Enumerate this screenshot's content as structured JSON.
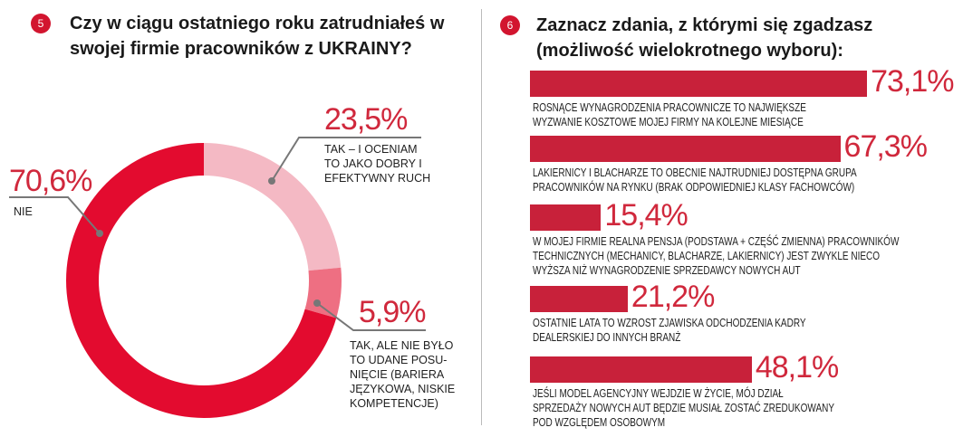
{
  "left": {
    "badge": "5",
    "title_line1": "Czy w ciągu ostatniego roku zatrudniałeś w",
    "title_line2": "swojej firmie pracowników z UKRAINY?"
  },
  "right": {
    "badge": "6",
    "title_line1": "Zaznacz zdania, z którymi się zgadzasz",
    "title_line2": "(możliwość wielokrotnego wyboru):"
  },
  "chart_data": [
    {
      "type": "pie",
      "title": "Czy w ciągu ostatniego roku zatrudniałeś w swojej firmie pracowników z UKRAINY?",
      "slices": [
        {
          "value_label": "23,5%",
          "value": 23.5,
          "lines": [
            "TAK – I OCENIAM",
            "TO JAKO DOBRY I",
            "EFEKTYWNY RUCH"
          ],
          "color": "#f4b9c4"
        },
        {
          "value_label": "5,9%",
          "value": 5.9,
          "lines": [
            "TAK, ALE NIE BYŁO",
            "TO UDANE POSU-",
            "NIĘCIE (BARIERA",
            "JĘZYKOWA, NISKIE",
            "KOMPETENCJE)"
          ],
          "color": "#ee6f82"
        },
        {
          "value_label": "70,6%",
          "value": 70.6,
          "lines": [
            "NIE"
          ],
          "color": "#e30b2f"
        }
      ]
    },
    {
      "type": "bar",
      "title": "Zaznacz zdania, z którymi się zgadzasz (możliwość wielokrotnego wyboru):",
      "color": "#c8213a",
      "bars": [
        {
          "value": 73.1,
          "value_label": "73,1%",
          "lines": [
            "ROSNĄCE WYNAGRODZENIA PRACOWNICZE TO NAJWIĘKSZE",
            "WYZWANIE KOSZTOWE MOJEJ FIRMY NA KOLEJNE MIESIĄCE"
          ]
        },
        {
          "value": 67.3,
          "value_label": "67,3%",
          "lines": [
            "LAKIERNICY I BLACHARZE TO OBECNIE NAJTRUDNIEJ DOSTĘPNA GRUPA",
            "PRACOWNIKÓW NA RYNKU (BRAK ODPOWIEDNIEJ KLASY FACHOWCÓW)"
          ]
        },
        {
          "value": 15.4,
          "value_label": "15,4%",
          "lines": [
            "W MOJEJ FIRMIE REALNA PENSJA (PODSTAWA + CZĘŚĆ ZMIENNA) PRACOWNIKÓW",
            "TECHNICZNYCH (MECHANICY, BLACHARZE, LAKIERNICY) JEST ZWYKLE NIECO",
            "WYŻSZA NIŻ WYNAGRODZENIE SPRZEDAWCY NOWYCH AUT"
          ]
        },
        {
          "value": 21.2,
          "value_label": "21,2%",
          "lines": [
            "OSTATNIE LATA TO WZROST ZJAWISKA ODCHODZENIA KADRY",
            "DEALERSKIEJ DO INNYCH BRANŻ"
          ]
        },
        {
          "value": 48.1,
          "value_label": "48,1%",
          "lines": [
            "JEŚLI MODEL AGENCYJNY WEJDZIE W ŻYCIE, MÓJ DZIAŁ",
            "SPRZEDAŻY NOWYCH AUT BĘDZIE MUSIAŁ ZOSTAĆ ZREDUKOWANY",
            "POD WZGLĘDEM OSOBOWYM"
          ]
        }
      ]
    }
  ]
}
